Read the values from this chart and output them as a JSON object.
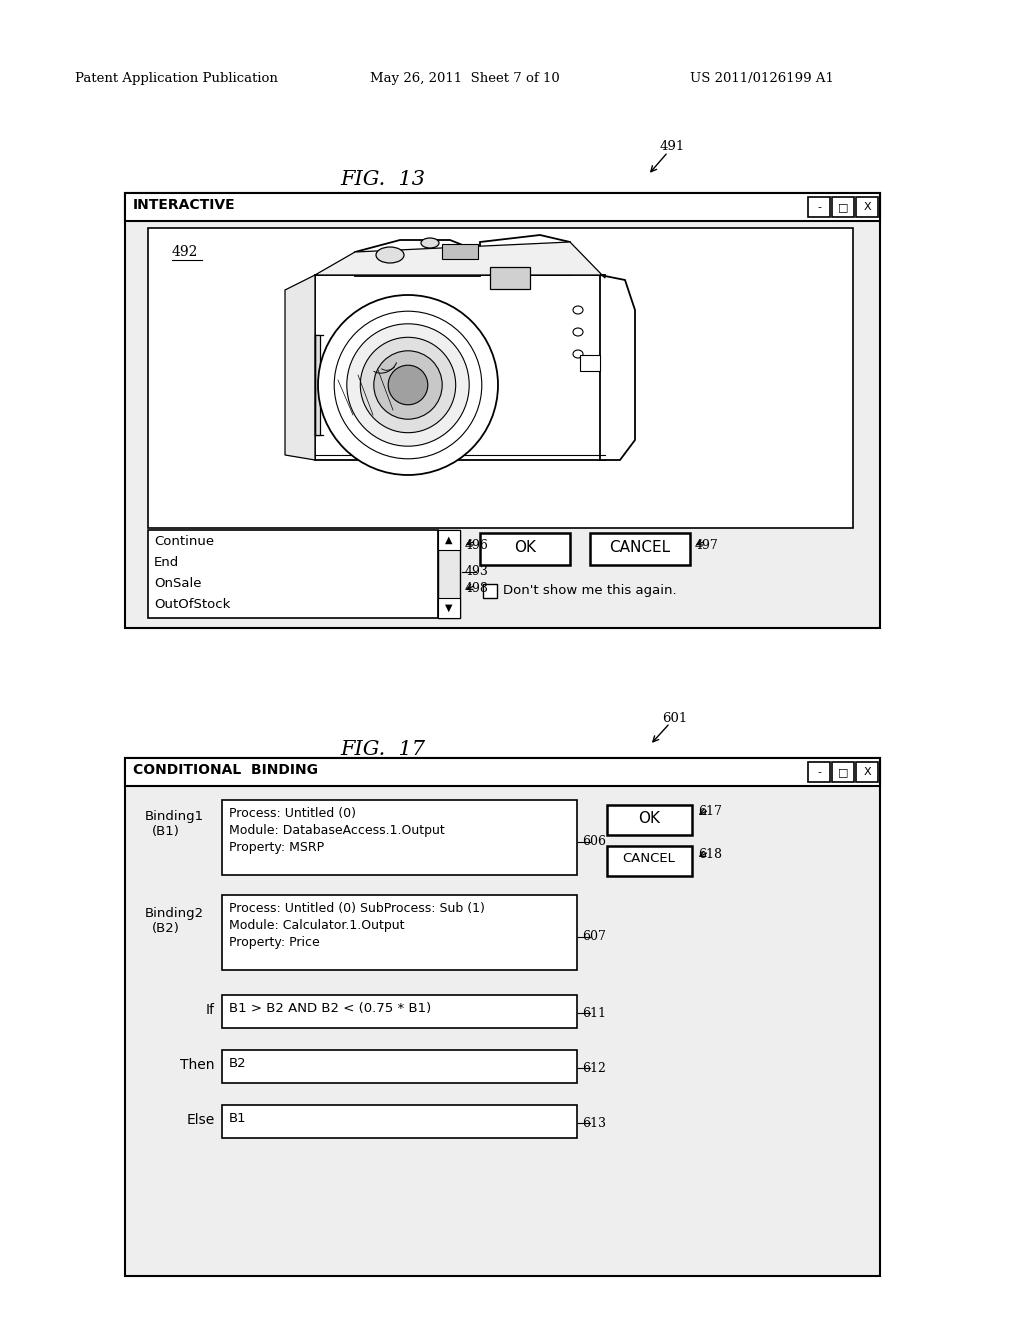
{
  "background_color": "#ffffff",
  "header_text_left": "Patent Application Publication",
  "header_text_mid": "May 26, 2011  Sheet 7 of 10",
  "header_text_right": "US 2011/0126199 A1",
  "fig13_label": "FIG.  13",
  "fig17_label": "FIG.  17",
  "fig13_ref": "491",
  "fig17_ref": "601",
  "interactive_title": "INTERACTIVE",
  "conditional_title": "CONDITIONAL  BINDING",
  "camera_label": "492",
  "list_items": [
    "Continue",
    "End",
    "OnSale",
    "OutOfStock"
  ],
  "ok1": "OK",
  "cancel1": "CANCEL",
  "ok2": "OK",
  "cancel2": "CANCEL",
  "dont_show": "Don't show me this again.",
  "binding1_label_l1": "Binding1",
  "binding1_label_l2": "(B1)",
  "binding2_label_l1": "Binding2",
  "binding2_label_l2": "(B2)",
  "binding1_line1": "Process: Untitled (0)",
  "binding1_line2": "Module: DatabaseAccess.1.Output",
  "binding1_line3": "Property: MSRP",
  "binding2_line1": "Process: Untitled (0) SubProcess: Sub (1)",
  "binding2_line2": "Module: Calculator.1.Output",
  "binding2_line3": "Property: Price",
  "if_label": "If",
  "then_label": "Then",
  "else_label": "Else",
  "if_text": "B1 > B2 AND B2 < (0.75 * B1)",
  "then_text": "B2",
  "else_text": "B1",
  "ref_493": "493",
  "ref_496": "496",
  "ref_497": "497",
  "ref_498": "498",
  "ref_606": "606",
  "ref_607": "607",
  "ref_611": "611",
  "ref_612": "612",
  "ref_613": "613",
  "ref_617": "617",
  "ref_618": "618"
}
